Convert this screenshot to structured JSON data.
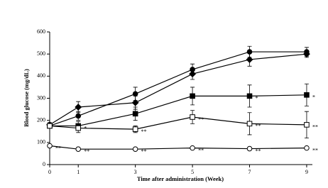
{
  "chart_data": {
    "type": "line",
    "xlabel": "Time after administration (Week)",
    "ylabel": "Blood glucose (mg/dL)",
    "x": [
      0,
      1,
      3,
      5,
      7,
      9
    ],
    "xlim": [
      0,
      9.2
    ],
    "xticks": [
      0,
      1,
      3,
      5,
      7,
      9
    ],
    "ylim": [
      0,
      600
    ],
    "yticks": [
      0,
      100,
      200,
      300,
      400,
      500,
      600
    ],
    "grid": false,
    "series": [
      {
        "color": "#000000",
        "marker": "diamond",
        "filled": true,
        "values": [
          180,
          260,
          280,
          410,
          475,
          500
        ],
        "errors": [
          10,
          25,
          30,
          25,
          30,
          15
        ],
        "labels": [
          null,
          null,
          null,
          null,
          null,
          null
        ]
      },
      {
        "color": "#000000",
        "marker": "circle",
        "filled": true,
        "values": [
          175,
          220,
          320,
          430,
          510,
          510
        ],
        "errors": [
          10,
          20,
          30,
          25,
          25,
          20
        ],
        "labels": [
          null,
          null,
          null,
          null,
          null,
          null
        ]
      },
      {
        "color": "#000000",
        "marker": "square",
        "filled": true,
        "values": [
          175,
          175,
          230,
          310,
          310,
          315
        ],
        "errors": [
          10,
          20,
          30,
          40,
          50,
          50
        ],
        "labels": [
          null,
          "*",
          null,
          null,
          "*",
          "*"
        ]
      },
      {
        "color": "#000000",
        "marker": "square",
        "filled": false,
        "values": [
          175,
          165,
          160,
          215,
          185,
          180
        ],
        "errors": [
          10,
          20,
          15,
          30,
          50,
          60
        ],
        "labels": [
          null,
          null,
          "**",
          "**",
          "**",
          "**"
        ]
      },
      {
        "color": "#000000",
        "marker": "circle",
        "filled": false,
        "values": [
          85,
          70,
          70,
          75,
          72,
          75
        ],
        "errors": [
          5,
          5,
          5,
          5,
          5,
          5
        ],
        "labels": [
          "**",
          "**",
          "**",
          "**",
          "**",
          "**"
        ]
      }
    ]
  }
}
